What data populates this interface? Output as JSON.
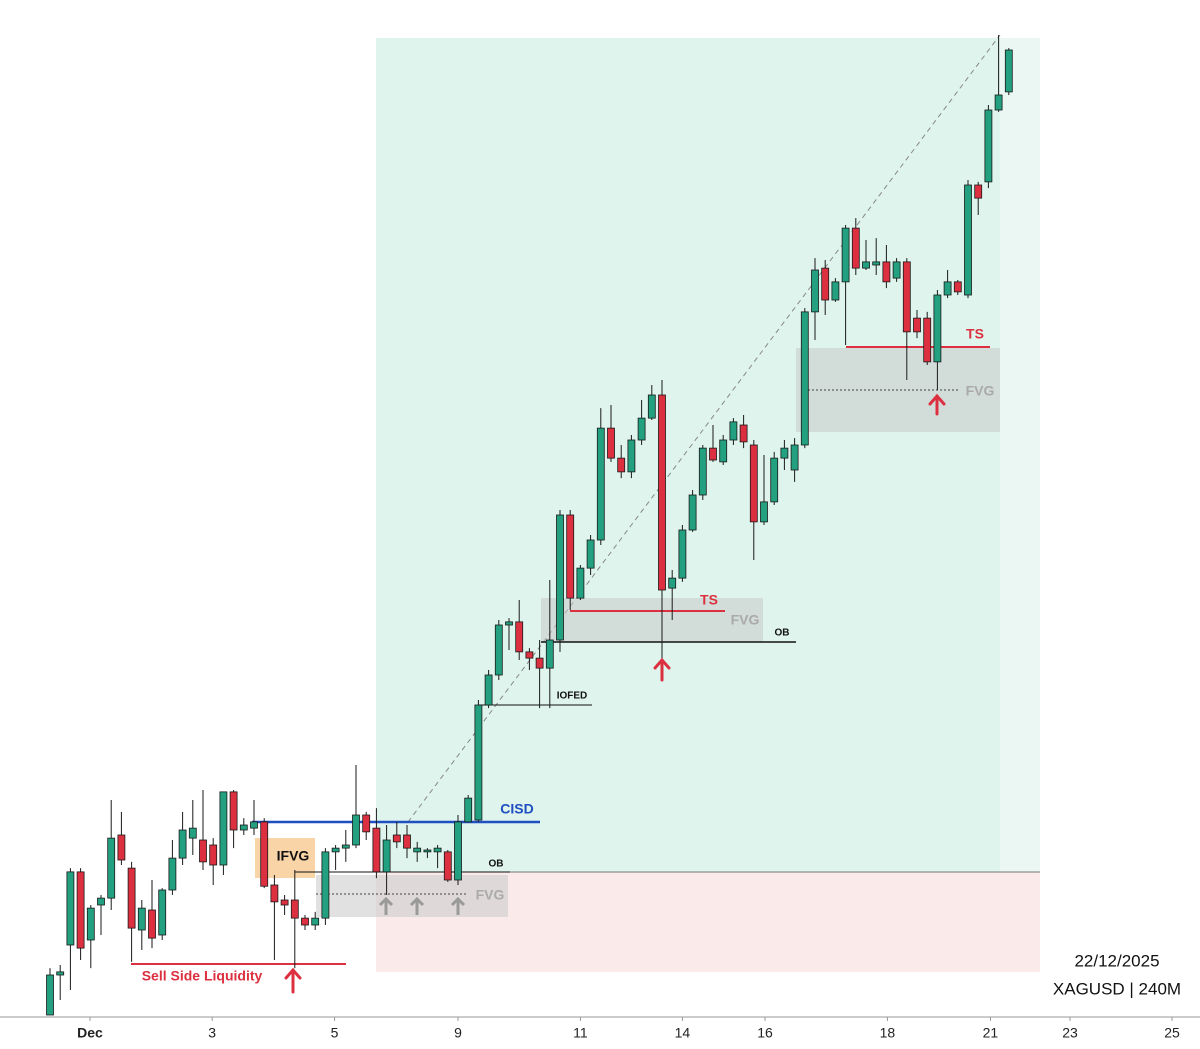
{
  "chart_data": {
    "type": "candlestick",
    "colors": {
      "up": "#22a07f",
      "down": "#dc3040",
      "edge": "#1a1a1a"
    },
    "ylim": [
      54.8,
      70.56
    ],
    "xticks": [
      {
        "value": 3.92,
        "label": "Dec"
      },
      {
        "value": 15.9,
        "label": "3"
      },
      {
        "value": 27.9,
        "label": "5"
      },
      {
        "value": 40.0,
        "label": "9"
      },
      {
        "value": 52.0,
        "label": "11"
      },
      {
        "value": 62.0,
        "label": "14"
      },
      {
        "value": 70.1,
        "label": "16"
      },
      {
        "value": 82.1,
        "label": "18"
      },
      {
        "value": 92.2,
        "label": "21"
      },
      {
        "value": 100.0,
        "label": "23"
      },
      {
        "value": 110.0,
        "label": "25"
      }
    ],
    "open": [
      54.8,
      55.44,
      55.92,
      57.09,
      56.0,
      56.56,
      56.67,
      57.68,
      57.15,
      56.16,
      56.48,
      56.08,
      56.8,
      57.31,
      57.63,
      57.6,
      57.52,
      57.2,
      58.37,
      57.76,
      57.79,
      57.89,
      56.88,
      56.64,
      56.64,
      56.35,
      56.24,
      56.35,
      57.41,
      57.47,
      57.52,
      58.0,
      57.79,
      57.09,
      57.68,
      57.68,
      57.41,
      57.41,
      57.41,
      57.41,
      56.96,
      57.89,
      57.92,
      59.76,
      60.24,
      61.04,
      61.09,
      60.61,
      60.51,
      60.35,
      60.8,
      62.8,
      61.47,
      61.95,
      62.4,
      64.19,
      63.71,
      63.49,
      64.0,
      64.35,
      64.72,
      61.63,
      61.79,
      62.56,
      63.12,
      63.87,
      63.65,
      64.0,
      64.24,
      63.92,
      62.69,
      63.01,
      63.71,
      63.52,
      63.92,
      66.05,
      66.75,
      66.24,
      66.53,
      67.39,
      66.75,
      66.8,
      66.85,
      66.59,
      66.85,
      65.95,
      65.95,
      65.25,
      66.32,
      66.53,
      66.32,
      68.08,
      68.13,
      69.28,
      69.57
    ],
    "high": [
      55.55,
      55.6,
      57.15,
      57.15,
      56.56,
      56.72,
      58.24,
      58.05,
      57.25,
      56.64,
      56.96,
      56.83,
      57.6,
      58.05,
      58.24,
      58.4,
      57.63,
      58.37,
      58.4,
      57.95,
      58.24,
      57.95,
      57.04,
      56.72,
      57.12,
      56.4,
      56.45,
      57.47,
      57.52,
      57.76,
      58.8,
      58.05,
      58.11,
      57.84,
      57.89,
      57.84,
      57.57,
      57.47,
      57.52,
      57.44,
      58.0,
      58.32,
      59.84,
      60.32,
      61.12,
      61.15,
      61.44,
      60.67,
      60.8,
      61.76,
      62.88,
      62.88,
      62.0,
      62.48,
      64.51,
      64.56,
      63.92,
      64.08,
      64.64,
      64.88,
      64.96,
      61.92,
      62.64,
      63.2,
      63.92,
      64.24,
      64.08,
      64.35,
      64.4,
      64.0,
      63.76,
      63.81,
      64.0,
      64.03,
      66.11,
      66.91,
      66.88,
      66.59,
      67.44,
      67.55,
      67.2,
      67.23,
      67.12,
      66.91,
      66.91,
      66.08,
      66.05,
      66.4,
      66.72,
      66.56,
      68.16,
      68.13,
      69.36,
      70.48,
      70.27
    ],
    "low": [
      54.8,
      55.04,
      55.2,
      55.68,
      55.55,
      56.08,
      56.48,
      57.2,
      55.65,
      55.84,
      55.87,
      56.0,
      56.72,
      57.2,
      57.36,
      57.12,
      56.88,
      57.04,
      57.47,
      57.68,
      57.68,
      56.83,
      55.68,
      56.4,
      55.55,
      56.16,
      56.16,
      56.24,
      57.12,
      57.25,
      57.47,
      57.6,
      56.99,
      56.72,
      57.47,
      57.31,
      57.25,
      57.31,
      57.15,
      56.93,
      56.88,
      57.89,
      57.89,
      59.71,
      60.16,
      60.64,
      60.48,
      60.32,
      59.71,
      59.71,
      60.61,
      61.28,
      61.44,
      61.84,
      62.32,
      63.65,
      63.39,
      63.39,
      63.92,
      64.32,
      60.51,
      61.12,
      61.73,
      62.53,
      63.04,
      63.65,
      63.6,
      63.92,
      63.87,
      62.08,
      62.64,
      62.96,
      63.52,
      63.33,
      63.87,
      65.6,
      66.0,
      66.21,
      65.52,
      66.64,
      66.72,
      66.64,
      66.43,
      66.53,
      64.96,
      65.63,
      65.2,
      64.8,
      66.27,
      66.32,
      66.27,
      67.6,
      68.03,
      69.25,
      69.52
    ],
    "close": [
      55.44,
      55.49,
      57.09,
      55.87,
      56.51,
      56.67,
      57.63,
      57.28,
      56.19,
      56.51,
      56.03,
      56.8,
      57.31,
      57.76,
      57.79,
      57.25,
      57.2,
      58.37,
      57.76,
      57.84,
      57.89,
      56.86,
      56.61,
      56.56,
      56.35,
      56.24,
      56.35,
      57.41,
      57.47,
      57.52,
      58.0,
      57.73,
      57.09,
      57.6,
      57.57,
      57.47,
      57.47,
      57.44,
      57.47,
      56.96,
      57.89,
      58.27,
      59.76,
      60.24,
      61.04,
      61.09,
      60.61,
      60.51,
      60.35,
      60.8,
      62.8,
      61.47,
      61.95,
      62.4,
      64.19,
      63.71,
      63.49,
      64.0,
      64.35,
      64.72,
      61.6,
      61.79,
      62.56,
      63.12,
      63.87,
      63.68,
      64.0,
      64.29,
      63.97,
      62.69,
      63.01,
      63.71,
      63.87,
      63.92,
      66.05,
      66.72,
      66.24,
      66.53,
      67.39,
      66.75,
      66.85,
      66.85,
      66.53,
      66.85,
      65.73,
      65.73,
      65.25,
      66.32,
      66.53,
      66.37,
      68.08,
      67.87,
      69.28,
      69.52,
      70.24
    ],
    "annotations": {
      "ssl": "Sell Side Liquidity",
      "ifvg": "IFVG",
      "cisd": "CISD",
      "ob1": "OB",
      "fvg1": "FVG",
      "iofed": "IOFED",
      "ob2": "OB",
      "fvg2": "FVG",
      "ts1": "TS",
      "fvg3": "FVG",
      "ts2": "TS",
      "date": "22/12/2025",
      "symbol": "XAGUSD | 240M"
    }
  }
}
